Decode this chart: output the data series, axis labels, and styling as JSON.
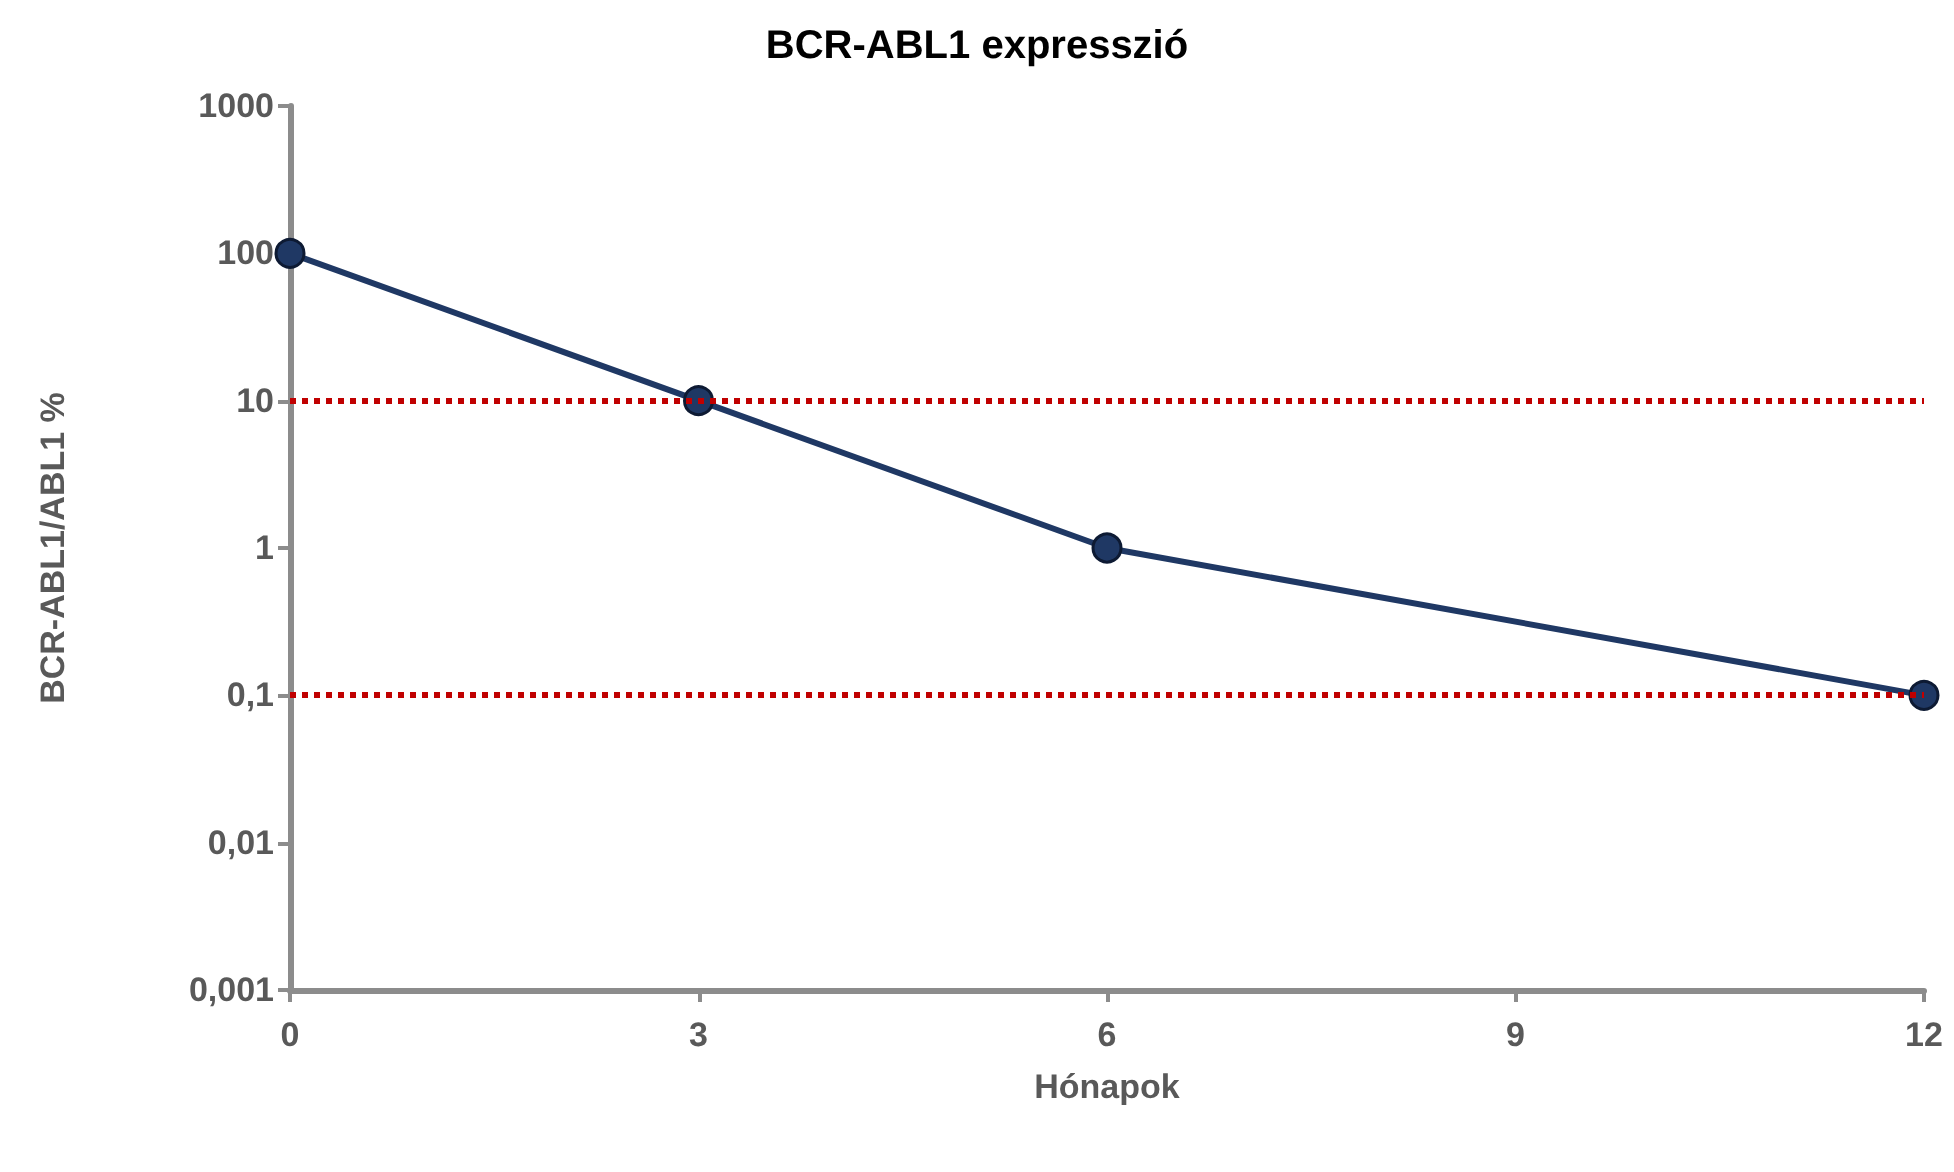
{
  "chart_data": {
    "type": "line",
    "title": "BCR-ABL1 expresszió",
    "xlabel": "Hónapok",
    "ylabel": "BCR-ABL1/ABL1 %",
    "x": [
      0,
      3,
      6,
      12
    ],
    "series": [
      {
        "color": "#1f3864",
        "values": [
          100,
          10,
          1,
          0.1
        ]
      }
    ],
    "xlim": [
      0,
      12
    ],
    "xticks": [
      0,
      3,
      6,
      9,
      12
    ],
    "ylim": [
      0.001,
      1000
    ],
    "yticks": [
      {
        "value": 0.001,
        "label": "0,001"
      },
      {
        "value": 0.01,
        "label": "0,01"
      },
      {
        "value": 0.1,
        "label": "0,1"
      },
      1,
      10,
      100,
      1000
    ],
    "log": "y",
    "grid": false,
    "marker": "circle",
    "line_style": "solid",
    "ref_lines": [
      {
        "axis": "y",
        "value": 10,
        "color": "#c00000",
        "line_style": "dotted"
      },
      {
        "axis": "y",
        "value": 0.1,
        "color": "#c00000",
        "line_style": "dotted"
      }
    ]
  }
}
